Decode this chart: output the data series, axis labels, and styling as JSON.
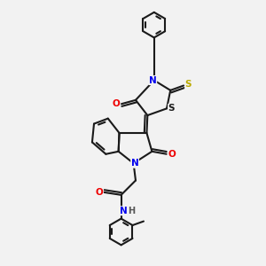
{
  "background_color": "#f2f2f2",
  "bond_color": "#1a1a1a",
  "atom_colors": {
    "N": "#0000ee",
    "O": "#ee0000",
    "S_yellow": "#bbaa00",
    "S_black": "#1a1a1a",
    "H": "#555555"
  },
  "figsize": [
    3.0,
    3.0
  ],
  "dpi": 100
}
